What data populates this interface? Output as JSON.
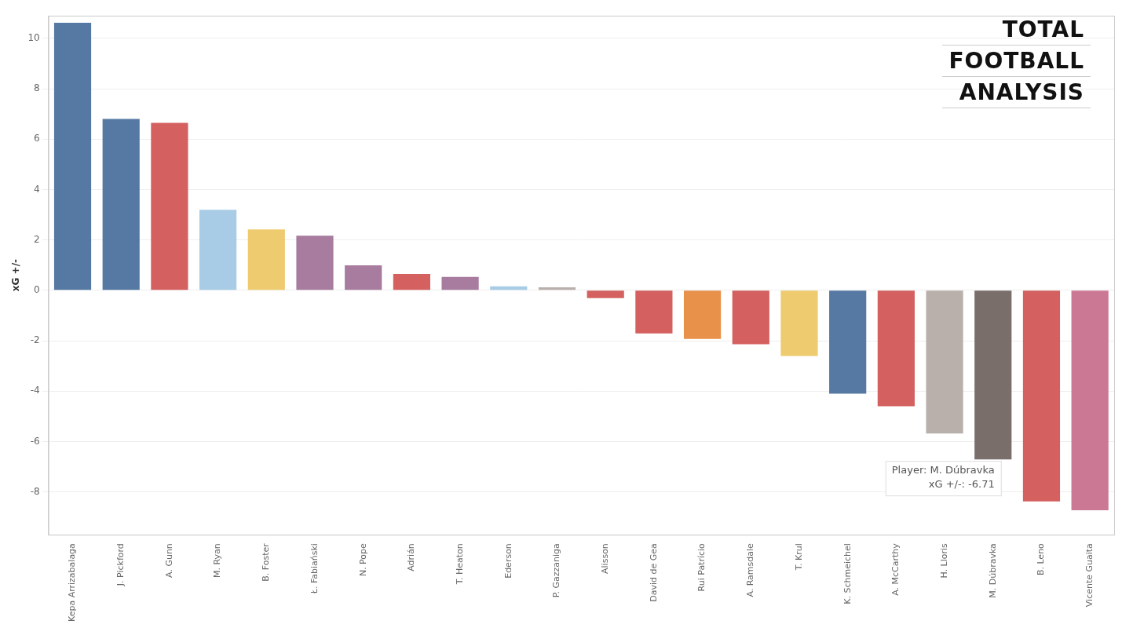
{
  "chart_data": {
    "type": "bar",
    "y_label": "xG +/-",
    "categories": [
      "Kepa Arrizabalaga",
      "J. Pickford",
      "A. Gunn",
      "M. Ryan",
      "B. Foster",
      "Ł. Fabiański",
      "N. Pope",
      "Adrián",
      "T. Heaton",
      "Ederson",
      "P. Gazzaniga",
      "Alisson",
      "David de Gea",
      "Rui Patrício",
      "A. Ramsdale",
      "T. Krul",
      "K. Schmeichel",
      "A. McCarthy",
      "H. Lloris",
      "M. Dúbravka",
      "B. Leno",
      "Vicente Guaita"
    ],
    "values": [
      10.62,
      6.8,
      6.65,
      3.2,
      2.42,
      2.17,
      0.99,
      0.65,
      0.53,
      0.16,
      0.12,
      -0.31,
      -1.71,
      -1.93,
      -2.14,
      -2.61,
      -4.1,
      -4.6,
      -5.68,
      -6.71,
      -8.38,
      -8.73
    ],
    "colors": [
      "#5579a3",
      "#5579a3",
      "#d4605f",
      "#a8cbe6",
      "#eecb6f",
      "#a77c9e",
      "#a77c9e",
      "#d4605f",
      "#a77c9e",
      "#a8cbe6",
      "#bab0ab",
      "#d4605f",
      "#d4605f",
      "#e8914a",
      "#d4605f",
      "#eecb6f",
      "#5579a3",
      "#d4605f",
      "#b9b0ab",
      "#7a6e6b",
      "#d4605f",
      "#cb7895"
    ],
    "ylim": [
      -9.7,
      10.9
    ],
    "yticks": [
      -8,
      -6,
      -4,
      -2,
      0,
      2,
      4,
      6,
      8,
      10
    ],
    "grid": true,
    "annotations": [
      {
        "category": "M. Dúbravka",
        "lines": [
          "Player: M. Dúbravka",
          "xG +/-: -6.71"
        ]
      }
    ],
    "watermark": [
      "TOTAL",
      "FOOTBALL",
      "ANALYSIS"
    ]
  }
}
